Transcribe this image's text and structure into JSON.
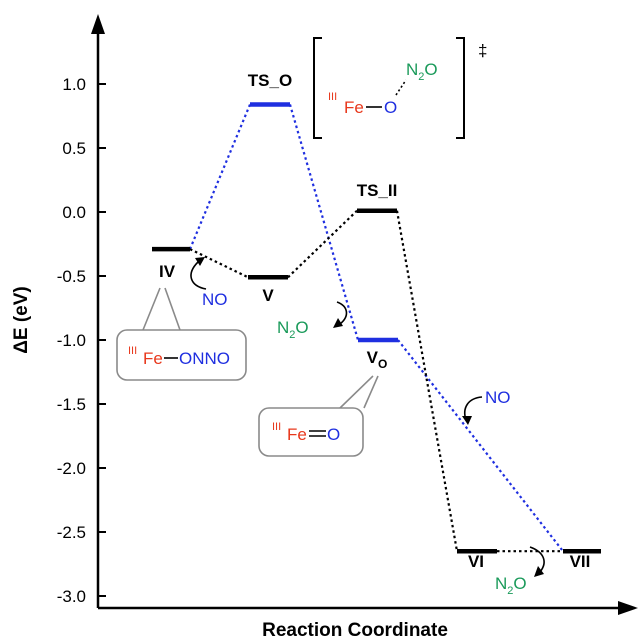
{
  "chart_data": {
    "type": "line",
    "title": "",
    "xlabel": "Reaction Coordinate",
    "ylabel": "ΔE (eV)",
    "ylim": [
      -3.2,
      1.4
    ],
    "yticks": [
      {
        "value": 1.0,
        "label": "1.0"
      },
      {
        "value": 0.5,
        "label": "0.5"
      },
      {
        "value": 0.0,
        "label": "0.0"
      },
      {
        "value": -0.5,
        "label": "-0.5"
      },
      {
        "value": -1.0,
        "label": "-1.0"
      },
      {
        "value": -1.5,
        "label": "-1.5"
      },
      {
        "value": -2.0,
        "label": "-2.0"
      },
      {
        "value": -2.5,
        "label": "-2.5"
      },
      {
        "value": -3.0,
        "label": "-3.0"
      }
    ],
    "states": [
      {
        "id": "IV",
        "label": "IV",
        "energy": -0.29,
        "color": "#000000"
      },
      {
        "id": "TS_O",
        "label": "TS_O",
        "energy": 0.84,
        "color": "#1f2fe0"
      },
      {
        "id": "V",
        "label": "V",
        "energy": -0.51,
        "color": "#000000"
      },
      {
        "id": "TS_II",
        "label": "TS_II",
        "energy": 0.01,
        "color": "#000000"
      },
      {
        "id": "V_O",
        "label": "V",
        "label_sub": "O",
        "energy": -1.0,
        "color": "#1f2fe0"
      },
      {
        "id": "VI",
        "label": "VI",
        "energy": -2.65,
        "color": "#000000"
      },
      {
        "id": "VII",
        "label": "VII",
        "energy": -2.65,
        "color": "#000000"
      }
    ],
    "series": [
      {
        "path": [
          "IV",
          "TS_O",
          "V_O",
          "VII"
        ],
        "color": "#1f2fe0"
      },
      {
        "path": [
          "IV",
          "V",
          "TS_II",
          "VI",
          "VII"
        ],
        "color": "#000000"
      }
    ]
  },
  "annotations": {
    "ts_box": {
      "fe_ox": "III",
      "fe": "Fe",
      "o": "O",
      "n2o_n": "N",
      "n2o_sub": "2",
      "n2o_o": "O",
      "dagger": "‡"
    },
    "iv_box": {
      "fe_ox": "III",
      "fe": "Fe",
      "onno": "ONNO"
    },
    "vo_box": {
      "fe_ox": "III",
      "fe": "Fe",
      "o": "O"
    },
    "no_1": "NO",
    "no_2": "NO",
    "n2o_1": {
      "n": "N",
      "sub": "2",
      "o": "O"
    },
    "n2o_2": {
      "n": "N",
      "sub": "2",
      "o": "O"
    }
  },
  "colors": {
    "blue": "#1f2fe0",
    "red": "#e8381c",
    "green": "#1a9a5a",
    "box": "#8a8a8a"
  }
}
